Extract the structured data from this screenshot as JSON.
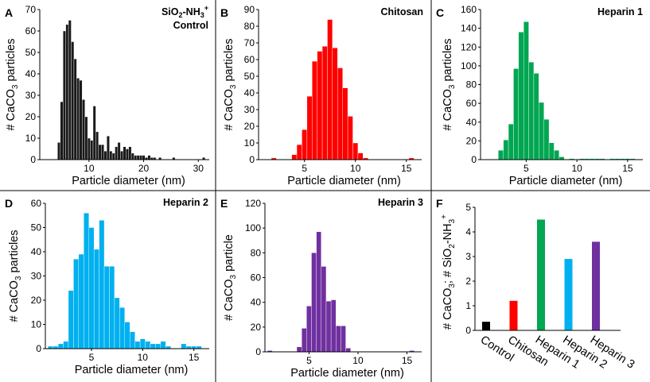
{
  "chart_data": [
    {
      "panel": "A",
      "type": "bar",
      "title_line1": "SiO",
      "title_sub": "2",
      "title_mid": "-NH",
      "title_sup": "3",
      "title_plus": "+",
      "title_line2": "Control",
      "color": "#1a1a1a",
      "xlabel": "Particle diameter (nm)",
      "ylabel_pre": "# CaCO",
      "ylabel_sub": "3",
      "ylabel_post": " particles",
      "xlim": [
        1,
        32
      ],
      "ylim": [
        0,
        70
      ],
      "xticks": [
        10,
        20,
        30
      ],
      "yticks": [
        0,
        10,
        20,
        30,
        40,
        50,
        60,
        70
      ],
      "x": [
        4.5,
        5,
        5.5,
        6,
        6.5,
        7,
        7.5,
        8,
        8.5,
        9,
        9.5,
        10,
        10.5,
        11,
        11.5,
        12,
        12.5,
        13,
        13.5,
        14,
        14.5,
        15,
        15.5,
        16,
        16.5,
        17,
        17.5,
        18,
        18.5,
        19,
        19.5,
        20,
        20.5,
        21,
        21.5,
        22,
        23,
        25.5,
        31
      ],
      "values": [
        8,
        27,
        60,
        63,
        65,
        55,
        47,
        38,
        37,
        28,
        20,
        10,
        9,
        25,
        13,
        7,
        7,
        4,
        11,
        4,
        3,
        6,
        8,
        4,
        6,
        5,
        6,
        3,
        2,
        2,
        2,
        2,
        1,
        2,
        1,
        1,
        1,
        1,
        1
      ],
      "bin_width": 0.5
    },
    {
      "panel": "B",
      "type": "bar",
      "title": "Chitosan",
      "color": "#ff0000",
      "xlabel": "Particle diameter (nm)",
      "ylabel_pre": "# CaCO",
      "ylabel_sub": "3",
      "ylabel_post": " particles",
      "xlim": [
        0.5,
        16.5
      ],
      "ylim": [
        0,
        90
      ],
      "xticks": [
        5,
        10,
        15
      ],
      "yticks": [
        0,
        10,
        20,
        30,
        40,
        50,
        60,
        70,
        80,
        90
      ],
      "x": [
        2,
        4,
        4.5,
        5,
        5.5,
        6,
        6.5,
        7,
        7.5,
        8,
        8.5,
        9,
        9.5,
        10,
        10.5,
        11,
        15.5
      ],
      "values": [
        1,
        3,
        9,
        18,
        38,
        59,
        65,
        68,
        84,
        67,
        55,
        43,
        26,
        10,
        4,
        1,
        1
      ],
      "bin_width": 0.5
    },
    {
      "panel": "C",
      "type": "bar",
      "title": "Heparin 1",
      "color": "#00a651",
      "xlabel": "Particle diameter (nm)",
      "ylabel_pre": "# CaCO",
      "ylabel_sub": "3",
      "ylabel_post": " particles",
      "xlim": [
        0.5,
        16.5
      ],
      "ylim": [
        0,
        160
      ],
      "xticks": [
        5,
        10,
        15
      ],
      "yticks": [
        0,
        20,
        40,
        60,
        80,
        100,
        120,
        140,
        160
      ],
      "x": [
        2.5,
        3,
        3.5,
        4,
        4.5,
        5,
        5.5,
        6,
        6.5,
        7,
        7.5,
        8,
        8.5,
        9.5,
        10.5,
        11,
        11.5,
        12,
        12.5,
        13.5,
        14,
        14.5,
        15,
        15.5
      ],
      "values": [
        10,
        21,
        38,
        97,
        136,
        147,
        104,
        92,
        61,
        43,
        18,
        10,
        3,
        1,
        1,
        1,
        1,
        1,
        1,
        1,
        1,
        1,
        1,
        1
      ],
      "bin_width": 0.5
    },
    {
      "panel": "D",
      "type": "bar",
      "title": "Heparin 2",
      "color": "#00b0f0",
      "xlabel": "Particle diameter (nm)",
      "ylabel_pre": "# CaCO",
      "ylabel_sub": "3",
      "ylabel_post": " particles",
      "xlim": [
        0.5,
        16.5
      ],
      "ylim": [
        0,
        60
      ],
      "xticks": [
        5,
        10,
        15
      ],
      "yticks": [
        0,
        10,
        20,
        30,
        40,
        50,
        60
      ],
      "x": [
        1,
        1.5,
        2,
        2.5,
        3,
        3.5,
        4,
        4.5,
        5,
        5.5,
        6,
        6.5,
        7,
        7.5,
        8,
        8.5,
        9,
        9.5,
        10,
        10.5,
        11,
        11.5,
        12,
        12.5,
        14,
        14.5,
        15,
        15.5
      ],
      "values": [
        1,
        1,
        2,
        3,
        24,
        37,
        39,
        56,
        50,
        41,
        53,
        34,
        34,
        21,
        17,
        11,
        7,
        3,
        4,
        3,
        2,
        2,
        3,
        1,
        2,
        1,
        1,
        1
      ],
      "bin_width": 0.5
    },
    {
      "panel": "E",
      "type": "bar",
      "title": "Heparin 3",
      "color": "#7030a0",
      "xlabel": "Particle diameter (nm)",
      "ylabel_pre": "# CaCO",
      "ylabel_sub": "3",
      "ylabel_post": " particle",
      "xlim": [
        0.5,
        16.5
      ],
      "ylim": [
        0,
        120
      ],
      "xticks": [
        5,
        10,
        15
      ],
      "yticks": [
        0,
        20,
        40,
        60,
        80,
        100,
        120
      ],
      "x": [
        1,
        4,
        4.5,
        5,
        5.5,
        6,
        6.5,
        7,
        7.5,
        8,
        8.5,
        9,
        15.5
      ],
      "values": [
        1,
        4,
        19,
        37,
        80,
        97,
        69,
        41,
        42,
        21,
        21,
        3,
        1
      ],
      "bin_width": 0.5
    },
    {
      "panel": "F",
      "type": "bar",
      "ylabel_pre": "# CaCO",
      "ylabel_sub": "3",
      "ylabel_mid": "; # SiO",
      "ylabel_sub2": "2",
      "ylabel_mid2": "-NH",
      "ylabel_sub3": "3",
      "ylabel_sup": "+",
      "ylim": [
        0,
        5
      ],
      "yticks": [
        0,
        1,
        2,
        3,
        4,
        5
      ],
      "categories": [
        "Control",
        "Chitosan",
        "Heparin 1",
        "Heparin 2",
        "Heparin 3"
      ],
      "values": [
        0.35,
        1.2,
        4.5,
        2.9,
        3.6
      ],
      "colors": [
        "#000000",
        "#ff0000",
        "#00a651",
        "#00b0f0",
        "#7030a0"
      ]
    }
  ]
}
